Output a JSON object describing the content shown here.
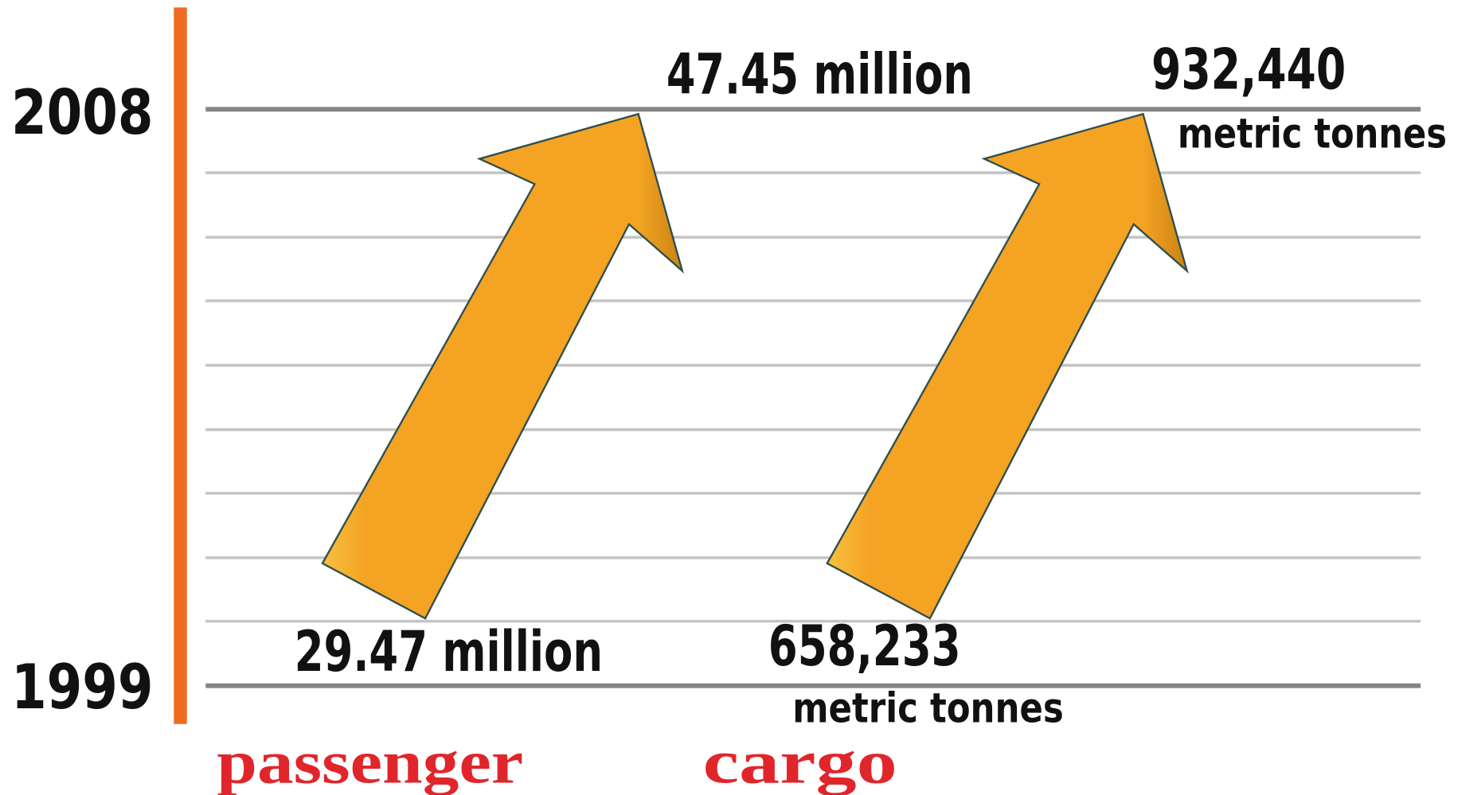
{
  "years": {
    "end": "2008",
    "start": "1999"
  },
  "passenger": {
    "label": "passenger",
    "start": "29.47 million",
    "end": "47.45 million"
  },
  "cargo": {
    "label": "cargo",
    "start": "658,233",
    "start_unit": "metric tonnes",
    "end": "932,440",
    "end_unit": "metric tonnes"
  }
}
